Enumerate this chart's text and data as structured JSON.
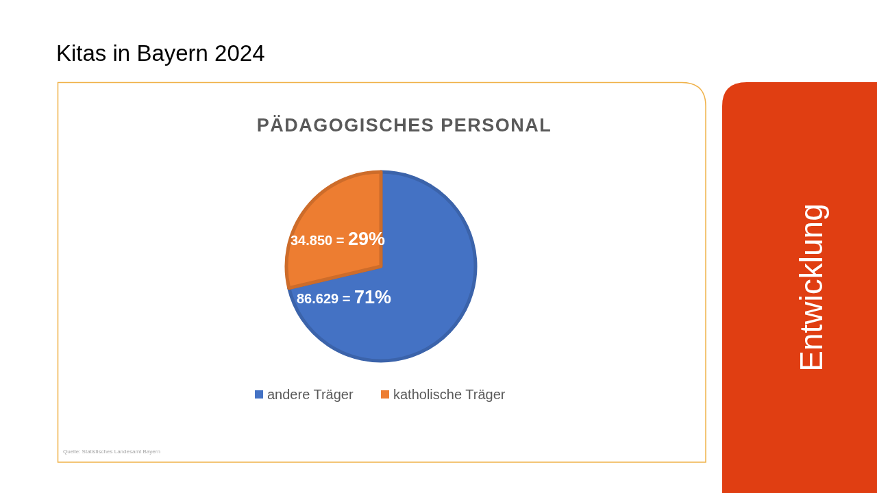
{
  "chart_data": {
    "type": "pie",
    "title": "PÄDAGOGISCHES PERSONAL",
    "categories": [
      "andere Träger",
      "katholische Träger"
    ],
    "values": [
      86629,
      34850
    ],
    "colors": [
      "#4472c4",
      "#ed7d31"
    ],
    "value_labels": [
      "86.629 = 71%",
      "34.850 = 29%"
    ],
    "legend": "bottom",
    "annotations": [
      "Kitas in Bayern 2024",
      "Entwicklung",
      "Quelle: Statistisches Landesamt Bayern"
    ]
  }
}
